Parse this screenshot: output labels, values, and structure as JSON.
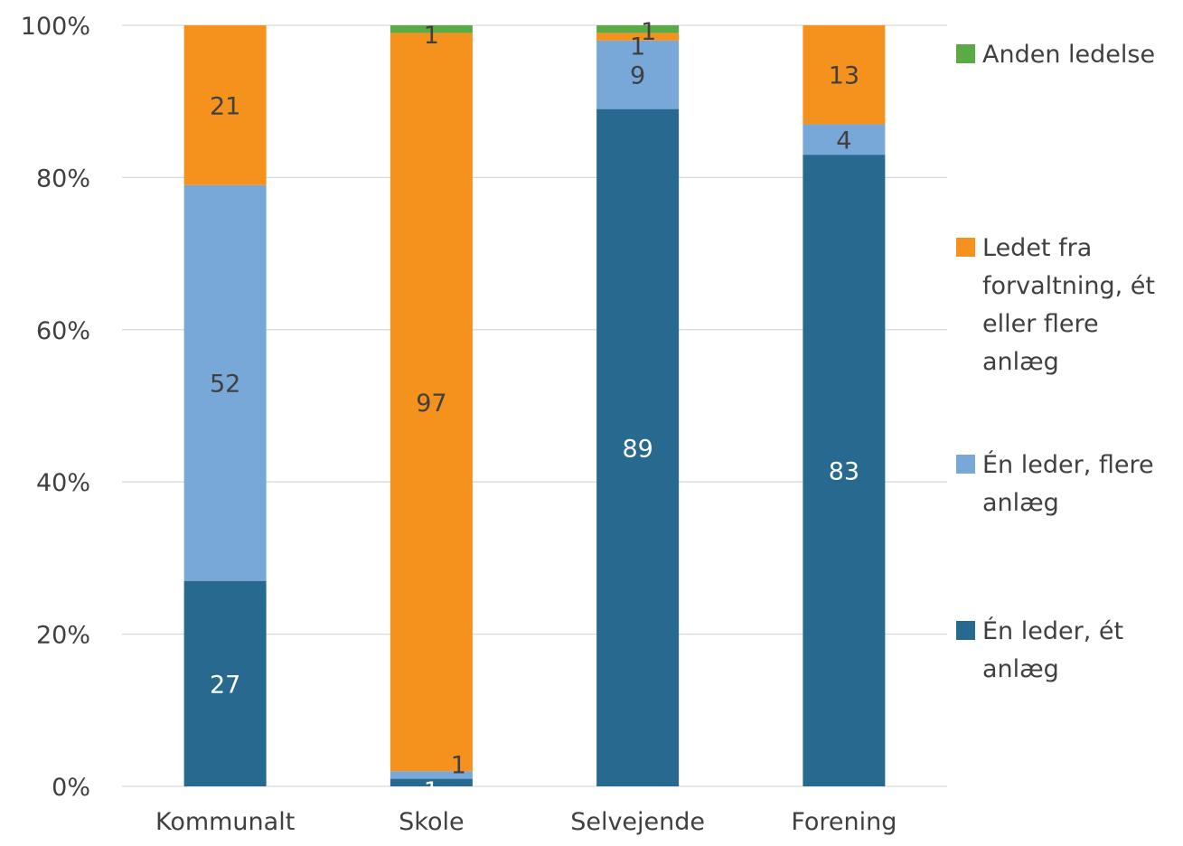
{
  "chart_data": {
    "type": "bar",
    "stacked": true,
    "percent_stacked": true,
    "categories": [
      "Kommunalt",
      "Skole",
      "Selvejende",
      "Forening"
    ],
    "series": [
      {
        "name": "Én leder, ét anlæg",
        "name_lines": [
          "Én leder, ét",
          "anlæg"
        ],
        "color": "#286990",
        "label_color": "#ffffff",
        "values": [
          27,
          1,
          89,
          83
        ]
      },
      {
        "name": "Én leder, flere anlæg",
        "name_lines": [
          "Én leder, flere",
          "anlæg"
        ],
        "color": "#78a8d8",
        "label_color": "#404040",
        "values": [
          52,
          1,
          9,
          4
        ]
      },
      {
        "name": "Ledet fra forvaltning, ét eller flere anlæg",
        "name_lines": [
          "Ledet fra",
          "forvaltning, ét",
          "eller flere",
          "anlæg"
        ],
        "color": "#f5921e",
        "label_color": "#404040",
        "values": [
          21,
          97,
          1,
          13
        ]
      },
      {
        "name": "Anden ledelse",
        "name_lines": [
          "Anden ledelse"
        ],
        "color": "#5aaa46",
        "label_color": "#404040",
        "values": [
          0,
          1,
          1,
          0
        ]
      }
    ],
    "y_ticks": [
      "0%",
      "20%",
      "40%",
      "60%",
      "80%",
      "100%"
    ],
    "ylim": [
      0,
      100
    ],
    "grid": true,
    "legend_position": "right",
    "axis_color": "#d9d9d9"
  }
}
